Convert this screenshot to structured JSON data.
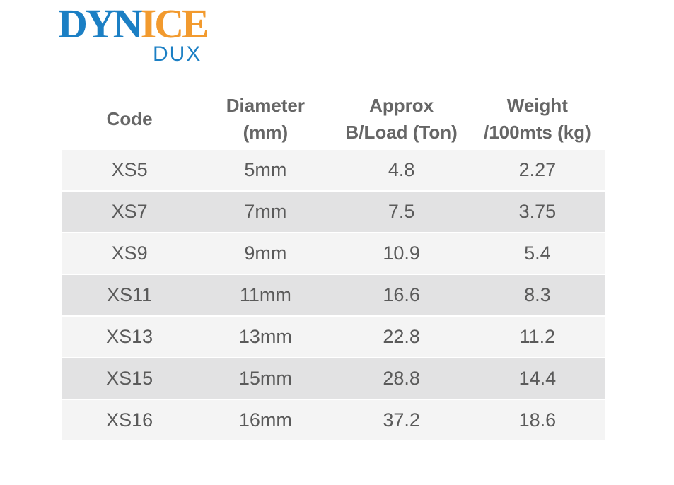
{
  "logo": {
    "part1": "DYN",
    "part2": "ICE",
    "sub": "DUX"
  },
  "table": {
    "headers": [
      [
        "Code"
      ],
      [
        "Diameter",
        "(mm)"
      ],
      [
        "Approx",
        "B/Load (Ton)"
      ],
      [
        "Weight",
        "/100mts (kg)"
      ]
    ],
    "rows": [
      [
        "XS5",
        "5mm",
        "4.8",
        "2.27"
      ],
      [
        "XS7",
        "7mm",
        "7.5",
        "3.75"
      ],
      [
        "XS9",
        "9mm",
        "10.9",
        "5.4"
      ],
      [
        "XS11",
        "11mm",
        "16.6",
        "8.3"
      ],
      [
        "XS13",
        "13mm",
        "22.8",
        "11.2"
      ],
      [
        "XS15",
        "15mm",
        "28.8",
        "14.4"
      ],
      [
        "XS16",
        "16mm",
        "37.2",
        "18.6"
      ]
    ]
  }
}
